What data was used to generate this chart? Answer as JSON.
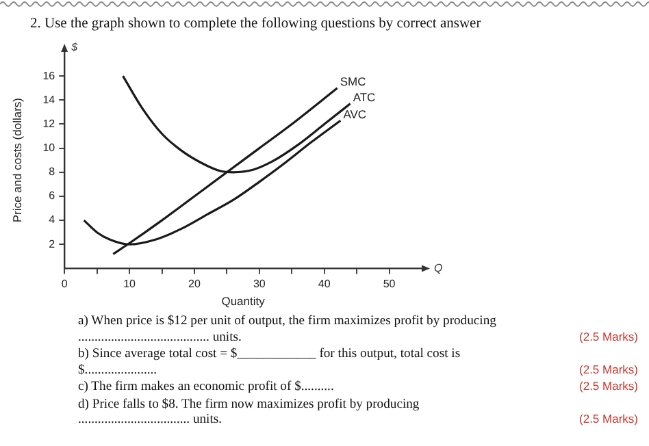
{
  "chart_data": {
    "type": "line",
    "title": "2.   Use the graph shown to complete the following questions by correct answer",
    "xlabel": "Quantity",
    "ylabel": "Price and costs (dollars)",
    "xlim": [
      0,
      55
    ],
    "ylim": [
      0,
      18
    ],
    "xticks": [
      0,
      {
        "value": 5,
        "label": null
      },
      10,
      {
        "value": 15,
        "label": null
      },
      20,
      {
        "value": 25,
        "label": null
      },
      30,
      {
        "value": 35,
        "label": null
      },
      40,
      {
        "value": 45,
        "label": null
      },
      50
    ],
    "yticks": [
      2,
      4,
      6,
      8,
      10,
      12,
      14,
      16
    ],
    "grid": false,
    "legend": false,
    "marker": "none",
    "line_style": "solid",
    "series": [
      {
        "name": "SMC",
        "color": "#1a1a1a",
        "x": [
          7.5,
          10,
          15,
          20,
          25,
          30,
          35,
          42
        ],
        "values": [
          1.2,
          2.1,
          4,
          6,
          8,
          10,
          12,
          15
        ]
      },
      {
        "name": "ATC",
        "color": "#1a1a1a",
        "x": [
          9,
          12,
          15,
          18,
          21,
          24,
          26,
          29,
          32,
          36,
          40,
          44
        ],
        "values": [
          16,
          13.3,
          11.2,
          9.8,
          8.8,
          8.1,
          8,
          8.2,
          8.9,
          10.3,
          12,
          13.7
        ]
      },
      {
        "name": "AVC",
        "color": "#1a1a1a",
        "x": [
          3,
          5,
          7,
          10,
          14,
          18,
          22,
          26,
          30,
          34,
          38,
          42.5
        ],
        "values": [
          4,
          3,
          2.4,
          2,
          2.4,
          3.3,
          4.5,
          5.7,
          7.2,
          8.8,
          10.5,
          12.3
        ]
      }
    ],
    "annotations": [
      "$",
      "Q",
      "a)  When price is $12 per unit of output, the firm maximizes profit by producing ........................................ units.",
      "(2.5 Marks)",
      "b)  Since average total cost = $____________ for this output, total cost is $......................",
      "(2.5 Marks)",
      "c)  The firm makes an economic profit of $..........",
      "(2.5 Marks)",
      "d)  Price falls to $8. The firm now maximizes profit by producing .................................. units.",
      "(2.5 Marks)"
    ]
  }
}
